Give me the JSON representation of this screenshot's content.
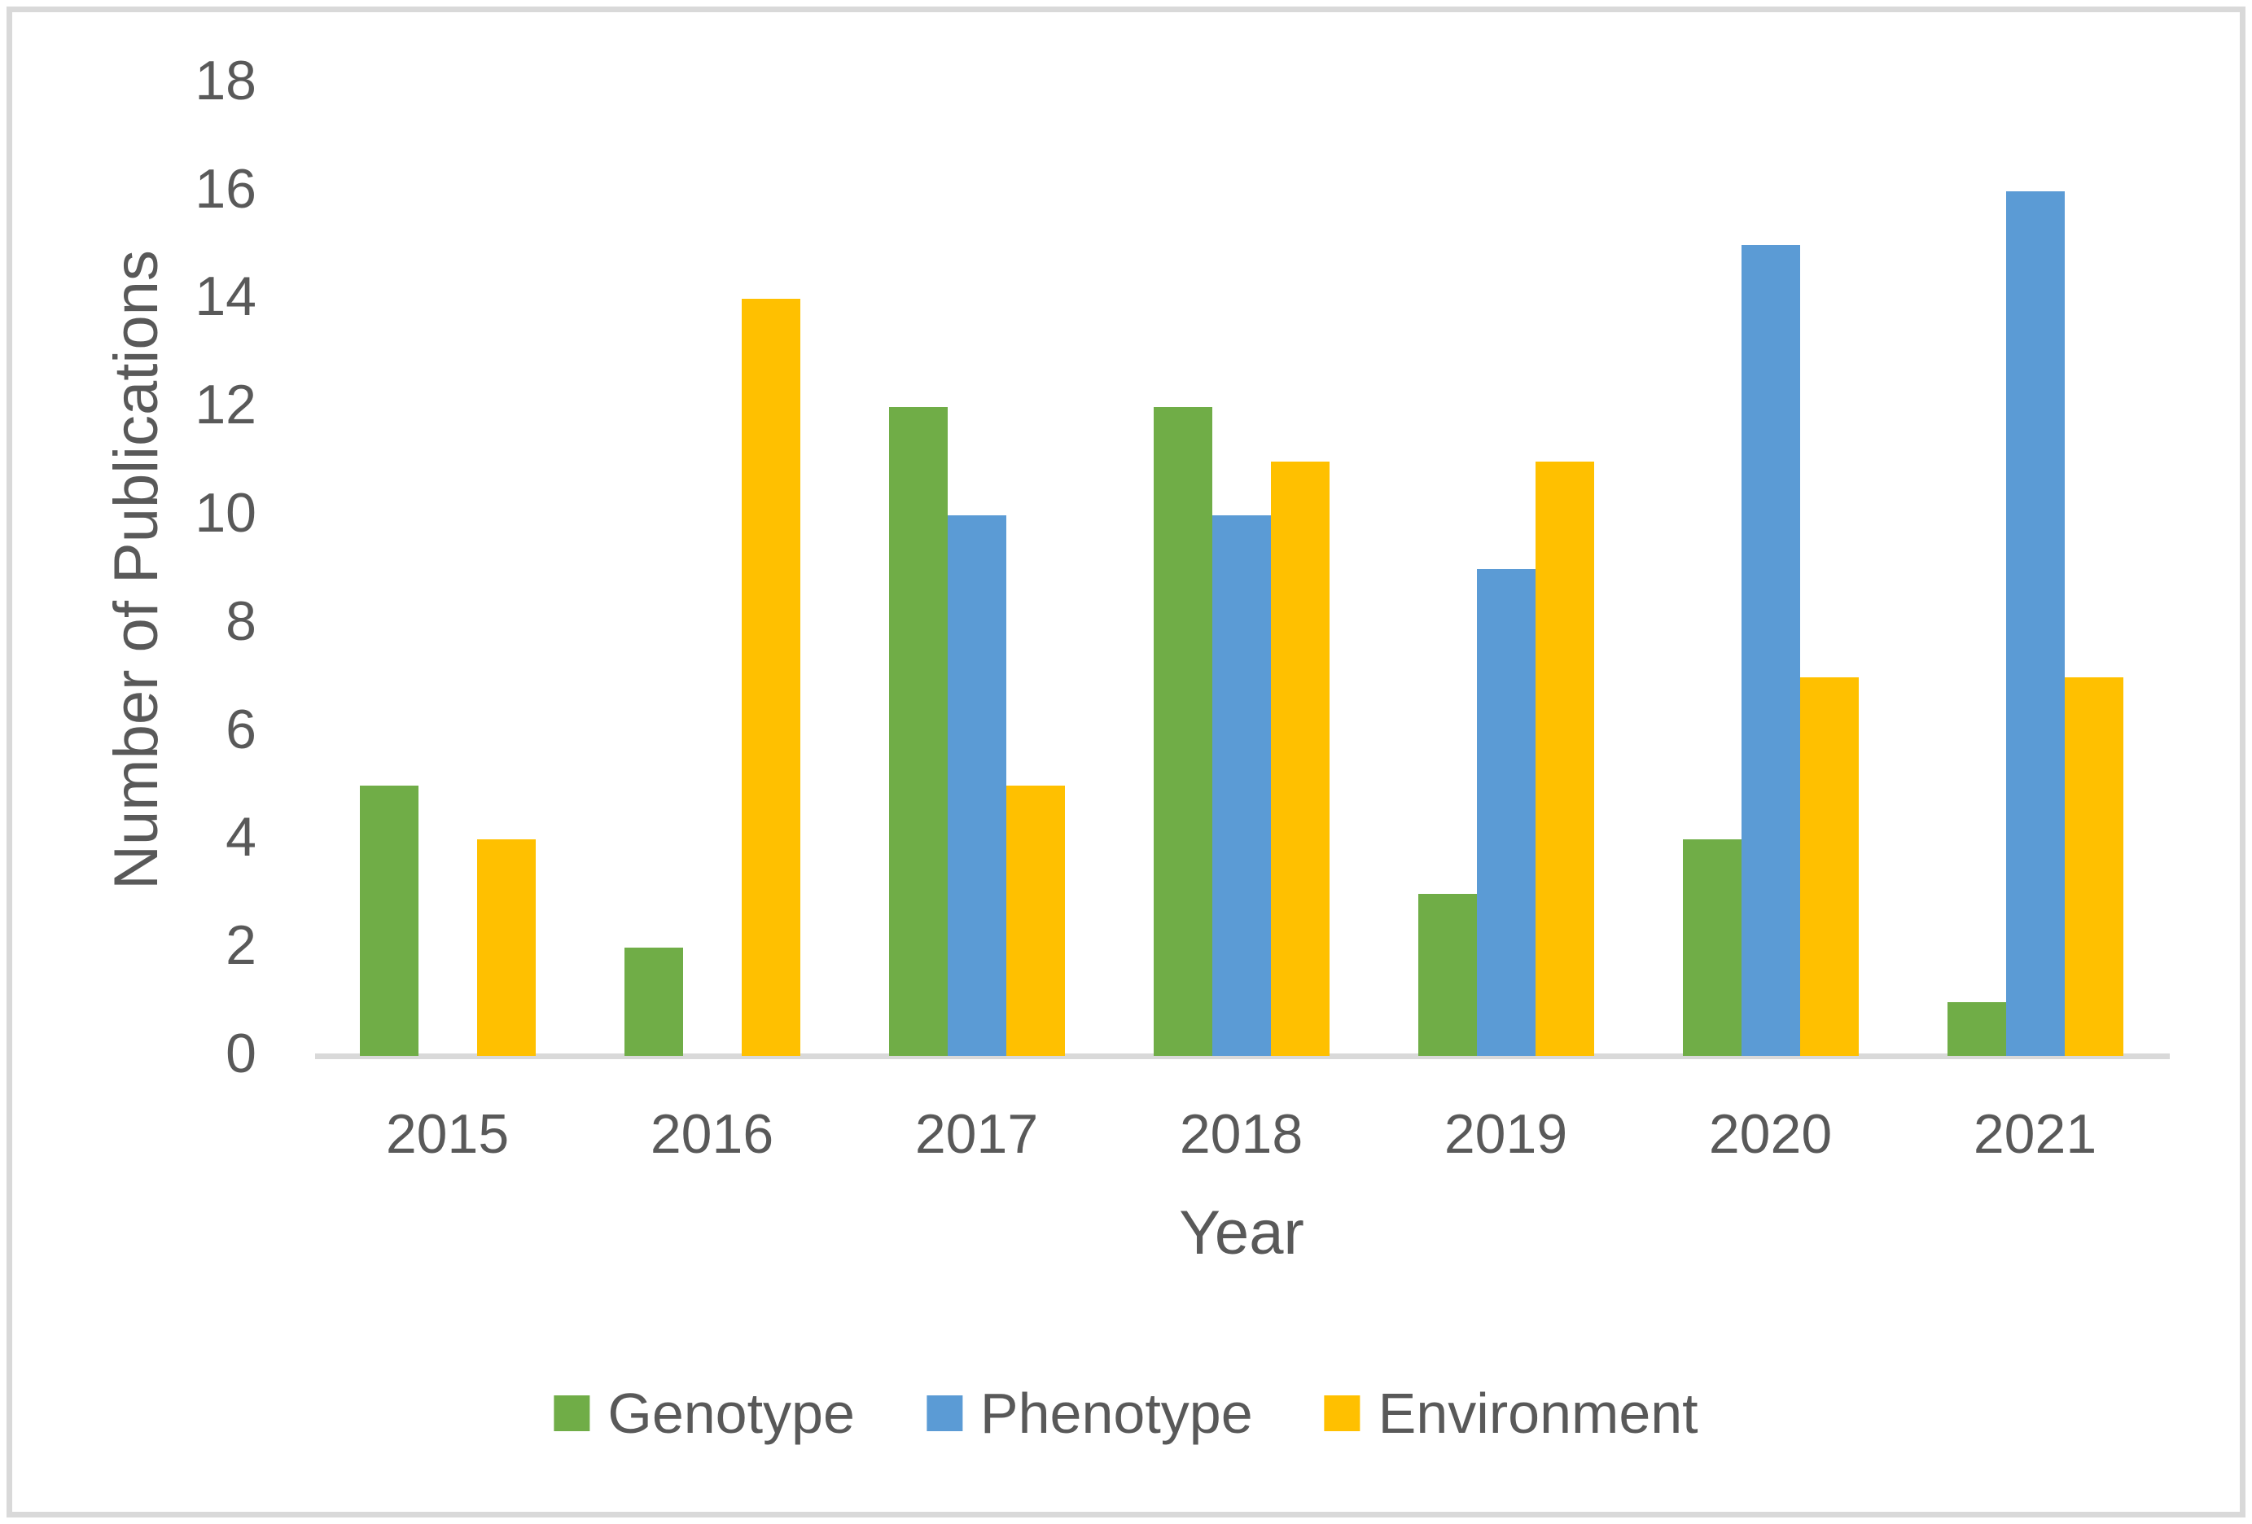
{
  "chart_data": {
    "type": "bar",
    "title": "",
    "categories": [
      "2015",
      "2016",
      "2017",
      "2018",
      "2019",
      "2020",
      "2021"
    ],
    "series": [
      {
        "name": "Genotype",
        "color": "#70AD47",
        "values": [
          5,
          2,
          12,
          12,
          3,
          4,
          1
        ]
      },
      {
        "name": "Phenotype",
        "color": "#5B9BD5",
        "values": [
          0,
          0,
          10,
          10,
          9,
          15,
          16
        ]
      },
      {
        "name": "Environment",
        "color": "#FFC000",
        "values": [
          4,
          14,
          5,
          11,
          11,
          7,
          7
        ]
      }
    ],
    "xlabel": "Year",
    "ylabel": "Number of Publications",
    "ylim": [
      0,
      18
    ],
    "yticks": [
      0,
      2,
      4,
      6,
      8,
      10,
      12,
      14,
      16,
      18
    ],
    "grid": false,
    "legend_position": "bottom",
    "legend_labels": [
      "Genotype",
      "Phenotype",
      "Environment"
    ]
  },
  "styles": {
    "text_color": "#595959",
    "axis_line_color": "#D9D9D9",
    "frame_border_color": "#D9D9D9",
    "background": "#FFFFFF"
  }
}
